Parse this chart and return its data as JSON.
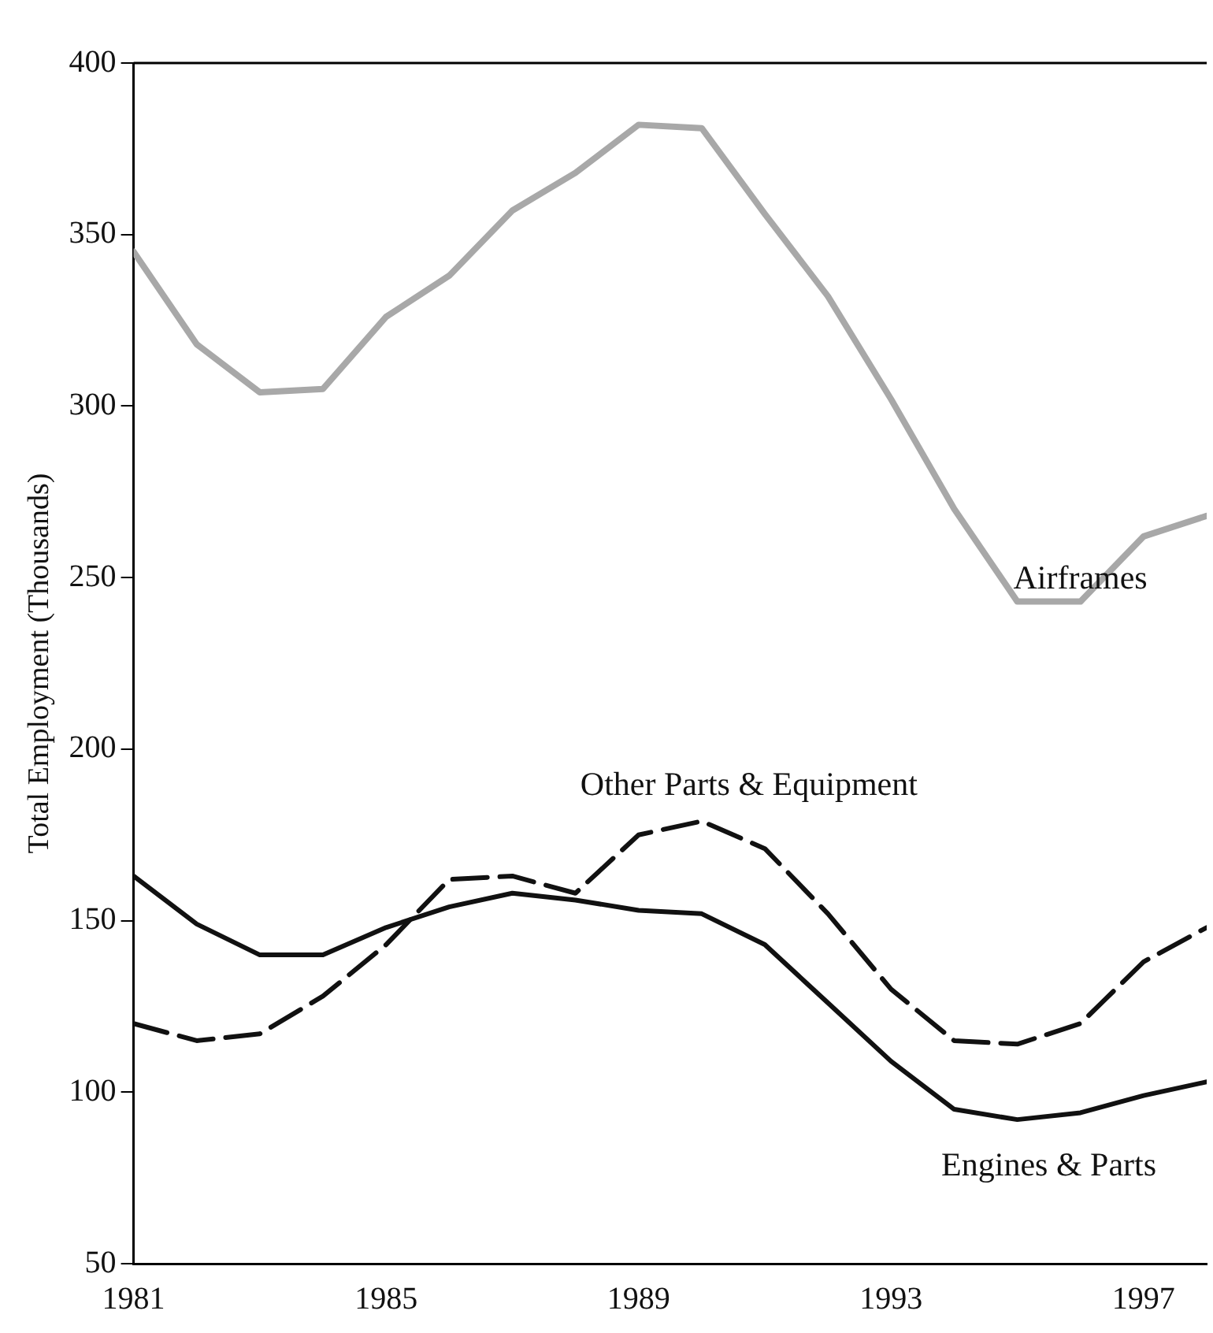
{
  "chart_data": {
    "type": "line",
    "ylabel": "Total Employment (Thousands)",
    "x": [
      1981,
      1982,
      1983,
      1984,
      1985,
      1986,
      1987,
      1988,
      1989,
      1990,
      1991,
      1992,
      1993,
      1994,
      1995,
      1996,
      1997,
      1998
    ],
    "xlim": [
      1981,
      1998
    ],
    "xticks": [
      1981,
      1985,
      1989,
      1993,
      1997
    ],
    "ylim": [
      50,
      400
    ],
    "yticks": [
      50,
      100,
      150,
      200,
      250,
      300,
      350,
      400
    ],
    "grid": false,
    "legend": false,
    "marker": "none",
    "series": [
      {
        "name": "Airframes",
        "color": "#a8a8a8",
        "line_style": "solid",
        "values": [
          345,
          318,
          304,
          305,
          326,
          338,
          357,
          368,
          382,
          381,
          356,
          332,
          302,
          270,
          243,
          243,
          262,
          268
        ]
      },
      {
        "name": "Other Parts & Equipment",
        "color": "#111111",
        "line_style": "dashed",
        "values": [
          120,
          115,
          117,
          128,
          143,
          162,
          163,
          158,
          175,
          179,
          171,
          152,
          130,
          115,
          114,
          120,
          138,
          148
        ]
      },
      {
        "name": "Engines & Parts",
        "color": "#111111",
        "line_style": "solid",
        "values": [
          163,
          149,
          140,
          140,
          148,
          154,
          158,
          156,
          153,
          152,
          143,
          126,
          109,
          95,
          92,
          94,
          99,
          103
        ]
      }
    ]
  }
}
